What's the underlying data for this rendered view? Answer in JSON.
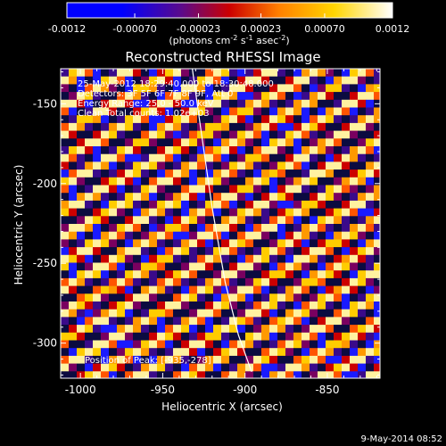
{
  "colorbar": {
    "ticks": [
      "-0.0012",
      "-0.00070",
      "-0.00023",
      "0.00023",
      "0.00070",
      "0.0012"
    ],
    "units_prefix": "(photons cm",
    "units_exp1": "-2",
    "units_mid": " s",
    "units_exp2": "-1",
    "units_mid2": " asec",
    "units_exp3": "-2",
    "units_suffix": ")"
  },
  "plot": {
    "title": "Reconstructed RHESSI Image",
    "info_lines": [
      "25-May-2012 18:29:40.000 to 18:30:48.000",
      "Detectors: 3F 5F 6F 7F 8F 9F, Att 0",
      "Energy Range: 25.0 - 50.0 keV",
      "Clean   Total counts: 1.02e+03"
    ],
    "peak_label": "Position of Peak: [-935,-278]"
  },
  "footer": {
    "date": "9-May-2014 08:52"
  },
  "chart_data": {
    "type": "heatmap",
    "title": "Reconstructed RHESSI Image",
    "xlabel": "Heliocentric X (arcsec)",
    "ylabel": "Heliocentric Y (arcsec)",
    "xlim": [
      -1012,
      -818
    ],
    "ylim": [
      -322,
      -128
    ],
    "xticks": [
      -1000,
      -950,
      -900,
      -850
    ],
    "yticks": [
      -150,
      -200,
      -250,
      -300
    ],
    "colorscale": {
      "min": -0.0012,
      "max": 0.0012,
      "colors": [
        "#000000",
        "#0000ff",
        "#5a0a8c",
        "#cc0000",
        "#ff7f00",
        "#ffd500",
        "#ffffff"
      ]
    },
    "limb_curve": {
      "x": [
        -932,
        -927,
        -920,
        -912,
        -904,
        -896
      ],
      "y": [
        -128,
        -165,
        -215,
        -262,
        -295,
        -318
      ]
    },
    "peak_position": [
      -935,
      -278
    ]
  }
}
